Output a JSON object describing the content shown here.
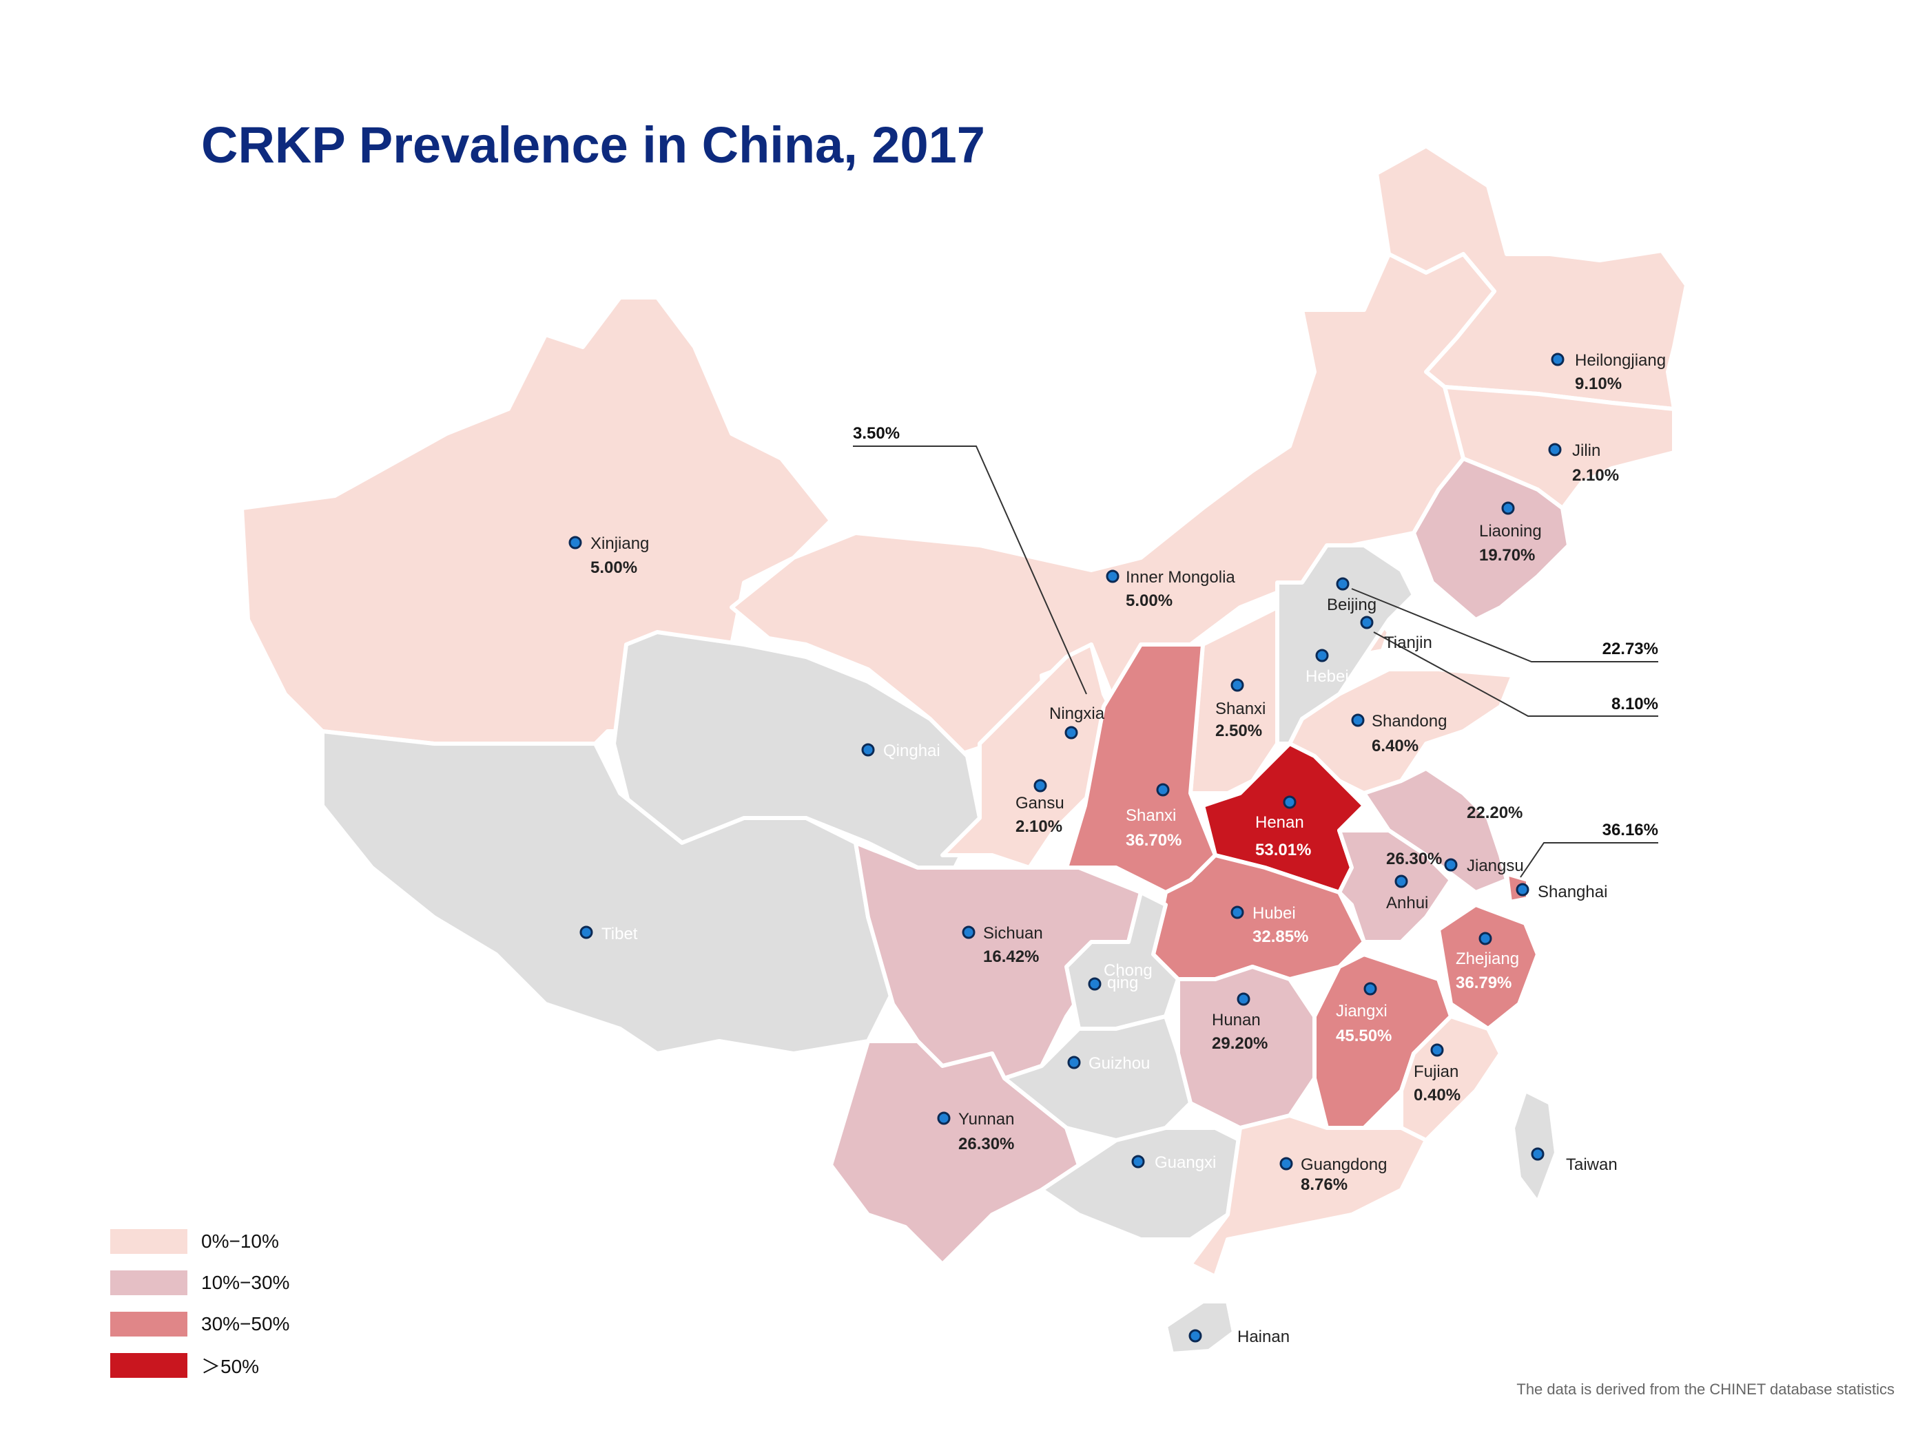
{
  "title": "CRKP Prevalence in China, 2017",
  "source_note": "The data is derived from the CHINET database statistics",
  "colors": {
    "no_data": "#dedede",
    "bin_0_10": "#f9ddd7",
    "bin_10_30": "#e5bfc5",
    "bin_30_50": "#e08688",
    "bin_50_plus": "#c9161f",
    "title": "#0d2a7e",
    "marker": "#1f7fd4"
  },
  "legend": [
    {
      "label": "0%−10%",
      "color": "#f9ddd7"
    },
    {
      "label": "10%−30%",
      "color": "#e5bfc5"
    },
    {
      "label": "30%−50%",
      "color": "#e08688"
    },
    {
      "label": "＞50%",
      "color": "#c9161f"
    }
  ],
  "provinces": [
    {
      "name": "Heilongjiang",
      "value": "9.10%",
      "bin": "bin_0_10"
    },
    {
      "name": "Jilin",
      "value": "2.10%",
      "bin": "bin_0_10"
    },
    {
      "name": "Liaoning",
      "value": "19.70%",
      "bin": "bin_10_30"
    },
    {
      "name": "Xinjiang",
      "value": "5.00%",
      "bin": "bin_0_10"
    },
    {
      "name": "Inner Mongolia",
      "value": "5.00%",
      "bin": "bin_0_10"
    },
    {
      "name": "Beijing",
      "value": "22.73%",
      "bin": "bin_10_30"
    },
    {
      "name": "Tianjin",
      "value": "8.10%",
      "bin": "bin_0_10"
    },
    {
      "name": "Hebei",
      "value": "",
      "bin": "no_data"
    },
    {
      "name": "Shanxi",
      "value": "2.50%",
      "bin": "bin_0_10"
    },
    {
      "name": "Shandong",
      "value": "6.40%",
      "bin": "bin_0_10"
    },
    {
      "name": "Ningxia",
      "value": "3.50%",
      "bin": "bin_0_10"
    },
    {
      "name": "Qinghai",
      "value": "",
      "bin": "no_data"
    },
    {
      "name": "Gansu",
      "value": "2.10%",
      "bin": "bin_0_10"
    },
    {
      "name": "Shanxi",
      "value": "36.70%",
      "bin": "bin_30_50"
    },
    {
      "name": "Henan",
      "value": "53.01%",
      "bin": "bin_50_plus"
    },
    {
      "name": "Jiangsu",
      "value": "22.20%",
      "bin": "bin_10_30"
    },
    {
      "name": "Anhui",
      "value": "26.30%",
      "bin": "bin_10_30"
    },
    {
      "name": "Shanghai",
      "value": "36.16%",
      "bin": "bin_30_50"
    },
    {
      "name": "Tibet",
      "value": "",
      "bin": "no_data"
    },
    {
      "name": "Sichuan",
      "value": "16.42%",
      "bin": "bin_10_30"
    },
    {
      "name": "Hubei",
      "value": "32.85%",
      "bin": "bin_30_50"
    },
    {
      "name": "Zhejiang",
      "value": "36.79%",
      "bin": "bin_30_50"
    },
    {
      "name": "Chongqing",
      "value": "",
      "bin": "no_data"
    },
    {
      "name": "Hunan",
      "value": "29.20%",
      "bin": "bin_10_30"
    },
    {
      "name": "Jiangxi",
      "value": "45.50%",
      "bin": "bin_30_50"
    },
    {
      "name": "Guizhou",
      "value": "",
      "bin": "no_data"
    },
    {
      "name": "Fujian",
      "value": "0.40%",
      "bin": "bin_0_10"
    },
    {
      "name": "Yunnan",
      "value": "26.30%",
      "bin": "bin_10_30"
    },
    {
      "name": "Guangxi",
      "value": "",
      "bin": "no_data"
    },
    {
      "name": "Guangdong",
      "value": "8.76%",
      "bin": "bin_0_10"
    },
    {
      "name": "Taiwan",
      "value": "",
      "bin": "no_data"
    },
    {
      "name": "Hainan",
      "value": "",
      "bin": "no_data"
    }
  ],
  "chong_label_parts": [
    "Chong",
    "qing"
  ]
}
